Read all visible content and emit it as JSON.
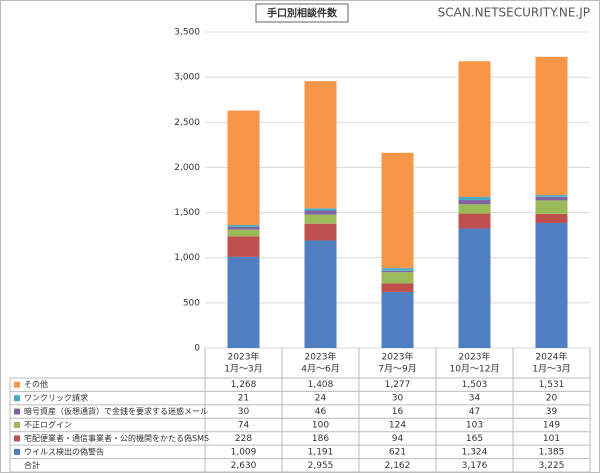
{
  "chart_data": {
    "type": "stacked-bar",
    "title": "手口別相談件数",
    "watermark": "SCAN.NETSECURITY.NE.JP",
    "categories": [
      [
        "2023年",
        "1月～3月"
      ],
      [
        "2023年",
        "4月～6月"
      ],
      [
        "2023年",
        "7月～9月"
      ],
      [
        "2023年",
        "10月～12月"
      ],
      [
        "2024年",
        "1月～3月"
      ]
    ],
    "series": [
      {
        "name": "ウイルス検出の偽警告",
        "color": "#4f7fc0",
        "values": [
          1009,
          1191,
          621,
          1324,
          1385
        ],
        "value_labels": [
          "1,009",
          "1,191",
          "621",
          "1,324",
          "1,385"
        ]
      },
      {
        "name": "宅配便業者・通信事業者・公的機関をかたる偽SMS",
        "color": "#c0504d",
        "values": [
          228,
          186,
          94,
          165,
          101
        ]
      },
      {
        "name": "不正ログイン",
        "color": "#9bbb59",
        "values": [
          74,
          100,
          124,
          103,
          149
        ]
      },
      {
        "name": "暗号資産（仮想通貨）で金銭を要求する迷惑メール",
        "color": "#8064a2",
        "values": [
          30,
          46,
          16,
          47,
          39
        ]
      },
      {
        "name": "ワンクリック請求",
        "color": "#4bacc6",
        "values": [
          21,
          24,
          30,
          34,
          20
        ]
      },
      {
        "name": "その他",
        "color": "#f79646",
        "values": [
          1268,
          1408,
          1277,
          1503,
          1531
        ],
        "value_labels": [
          "1,268",
          "1,408",
          "1,277",
          "1,503",
          "1,531"
        ]
      }
    ],
    "totals": {
      "name": "合計",
      "values": [
        2630,
        2955,
        2162,
        3176,
        3225
      ],
      "value_labels": [
        "2,630",
        "2,955",
        "2,162",
        "3,176",
        "3,225"
      ]
    },
    "ylim": [
      0,
      3500
    ],
    "yticks": [
      0,
      500,
      {
        "value": 1000,
        "label": "1,000"
      },
      {
        "value": 1500,
        "label": "1,500"
      },
      {
        "value": 2000,
        "label": "2,000"
      },
      {
        "value": 2500,
        "label": "2,500"
      },
      {
        "value": 3000,
        "label": "3,000"
      },
      {
        "value": 3500,
        "label": "3,500"
      }
    ],
    "grid": true
  }
}
